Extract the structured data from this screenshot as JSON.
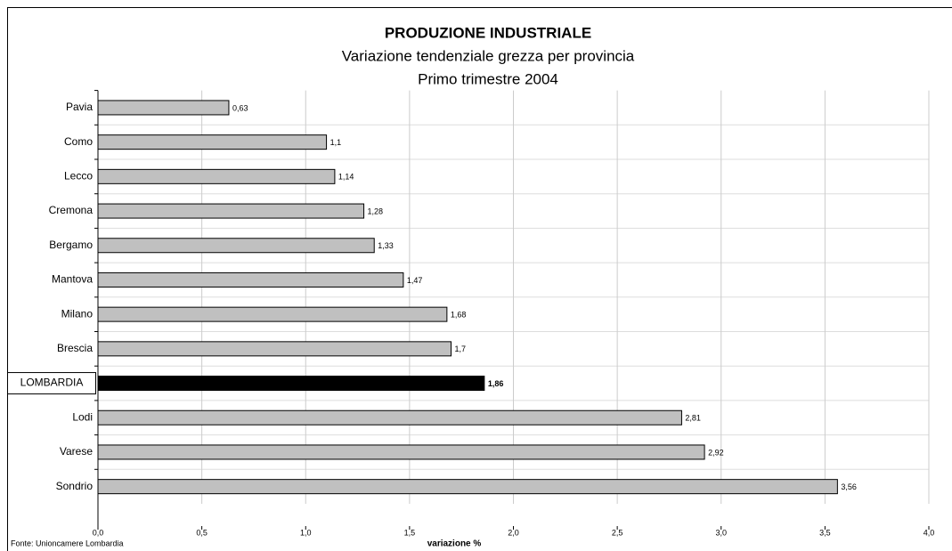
{
  "chart_data": {
    "type": "hbar",
    "title": "PRODUZIONE INDUSTRIALE",
    "subtitle": [
      "Variazione tendenziale grezza per provincia",
      "Primo trimestre 2004"
    ],
    "categories": [
      "Pavia",
      "Como",
      "Lecco",
      "Cremona",
      "Bergamo",
      "Mantova",
      "Milano",
      "Brescia",
      "LOMBARDIA",
      "Lodi",
      "Varese",
      "Sondrio"
    ],
    "values": [
      0.63,
      1.1,
      1.14,
      1.28,
      1.33,
      1.47,
      1.68,
      1.7,
      1.86,
      2.81,
      2.92,
      3.56
    ],
    "value_labels": [
      "0,63",
      "1,1",
      "1,14",
      "1,28",
      "1,33",
      "1,47",
      "1,68",
      "1,7",
      "1,86",
      "2,81",
      "2,92",
      "3,56"
    ],
    "colors": [
      "#c0c0c0",
      "#c0c0c0",
      "#c0c0c0",
      "#c0c0c0",
      "#c0c0c0",
      "#c0c0c0",
      "#c0c0c0",
      "#c0c0c0",
      "#000000",
      "#c0c0c0",
      "#c0c0c0",
      "#c0c0c0"
    ],
    "xlim": [
      0,
      4
    ],
    "xticks": [
      {
        "value": 0,
        "label": "0,0"
      },
      {
        "value": 0.5,
        "label": "0,5"
      },
      {
        "value": 1,
        "label": "1,0"
      },
      {
        "value": 1.5,
        "label": "1,5"
      },
      {
        "value": 2,
        "label": "2,0"
      },
      {
        "value": 2.5,
        "label": "2,5"
      },
      {
        "value": 3,
        "label": "3,0"
      },
      {
        "value": 3.5,
        "label": "3,5"
      },
      {
        "value": 4,
        "label": "4,0"
      }
    ],
    "xlabel": "variazione %",
    "source": "Fonte: Unioncamere Lombardia",
    "grid": true
  }
}
